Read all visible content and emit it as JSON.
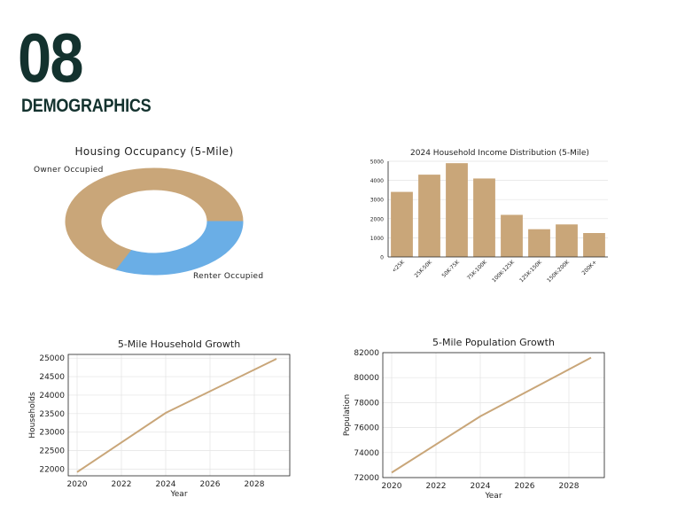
{
  "header": {
    "section_number": "08",
    "section_title": "DEMOGRAPHICS"
  },
  "colors": {
    "brand_dark": "#13322e",
    "tan": "#c9a679",
    "blue": "#6aaee6",
    "grid": "#e3e3e3",
    "axis": "#222222"
  },
  "chart_data": [
    {
      "id": "housing-occupancy",
      "type": "pie",
      "title": "Housing Occupancy (5-Mile)",
      "labels": [
        "Owner Occupied",
        "Renter Occupied"
      ],
      "values": [
        68,
        32
      ],
      "donut": true
    },
    {
      "id": "income-distribution",
      "type": "bar",
      "title": "2024 Household Income Distribution (5-Mile)",
      "categories": [
        "<25K",
        "25K-50K",
        "50K-75K",
        "75K-100K",
        "100K-125K",
        "125K-150K",
        "150K-200K",
        "200K+"
      ],
      "values": [
        3400,
        4300,
        4900,
        4100,
        2200,
        1450,
        1700,
        1250
      ],
      "ylim": [
        0,
        5000
      ],
      "yticks": [
        0,
        1000,
        2000,
        3000,
        4000,
        5000
      ],
      "grid": true,
      "xlabel": "",
      "ylabel": ""
    },
    {
      "id": "household-growth",
      "type": "line",
      "title": "5-Mile Household Growth",
      "xlabel": "Year",
      "ylabel": "Households",
      "x": [
        2020,
        2024,
        2029
      ],
      "y": [
        21920,
        23520,
        24980
      ],
      "xlim": [
        2019.6,
        2029.6
      ],
      "ylim": [
        21820,
        25100
      ],
      "xticks": [
        2020,
        2022,
        2024,
        2026,
        2028
      ],
      "yticks": [
        22000,
        22500,
        23000,
        23500,
        24000,
        24500,
        25000
      ],
      "grid": true
    },
    {
      "id": "population-growth",
      "type": "line",
      "title": "5-Mile Population Growth",
      "xlabel": "Year",
      "ylabel": "Population",
      "x": [
        2020,
        2024,
        2029
      ],
      "y": [
        72400,
        76900,
        81600
      ],
      "xlim": [
        2019.6,
        2029.6
      ],
      "ylim": [
        72000,
        82000
      ],
      "xticks": [
        2020,
        2022,
        2024,
        2026,
        2028
      ],
      "yticks": [
        72000,
        74000,
        76000,
        78000,
        80000,
        82000
      ],
      "grid": true
    }
  ]
}
